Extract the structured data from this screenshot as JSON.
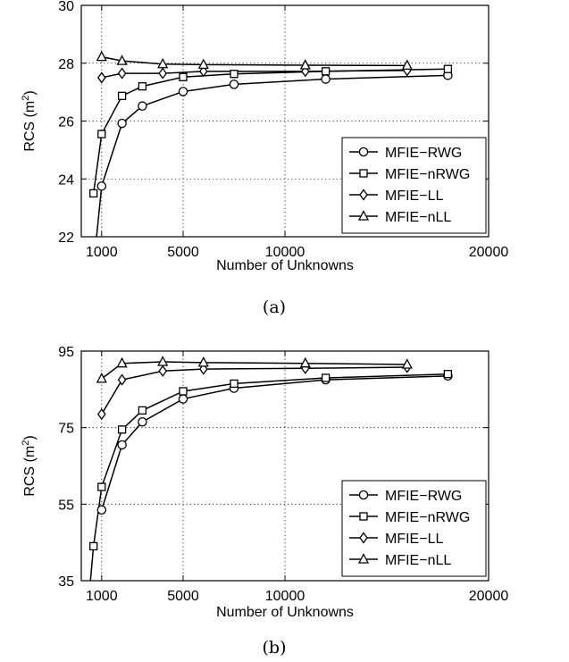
{
  "chart_data": [
    {
      "type": "line",
      "caption": "(a)",
      "xlabel": "Number of Unknowns",
      "ylabel": "RCS (m2)",
      "ylabel_main": "RCS (m",
      "ylabel_sup": "2",
      "ylabel_close": ")",
      "xlim": [
        0,
        20000
      ],
      "ylim": [
        22,
        30
      ],
      "xticks": [
        1000,
        5000,
        10000,
        20000
      ],
      "yticks": [
        22,
        24,
        26,
        28,
        30
      ],
      "grid": true,
      "legend_position": "bottom-right",
      "series": [
        {
          "name": "MFIE−RWG",
          "marker": "circle",
          "x": [
            1000,
            2000,
            3000,
            5000,
            7500,
            12000,
            18000
          ],
          "y": [
            23.75,
            25.92,
            26.52,
            27.02,
            27.27,
            27.45,
            27.58
          ]
        },
        {
          "name": "MFIE−nRWG",
          "marker": "square",
          "x": [
            600,
            1000,
            2000,
            3000,
            5000,
            7500,
            12000,
            18000
          ],
          "y": [
            23.5,
            25.55,
            26.87,
            27.2,
            27.52,
            27.63,
            27.72,
            27.8
          ]
        },
        {
          "name": "MFIE−LL",
          "marker": "diamond",
          "x": [
            1000,
            2000,
            4000,
            6000,
            11000,
            16000
          ],
          "y": [
            27.5,
            27.65,
            27.65,
            27.72,
            27.72,
            27.75
          ]
        },
        {
          "name": "MFIE−nLL",
          "marker": "triangle",
          "x": [
            1000,
            2000,
            4000,
            6000,
            11000,
            16000
          ],
          "y": [
            28.22,
            28.08,
            27.97,
            27.95,
            27.93,
            27.92
          ]
        }
      ],
      "extra_segments": [
        {
          "series": 0,
          "x": [
            750,
            1000
          ],
          "y": [
            22,
            23.75
          ]
        }
      ]
    },
    {
      "type": "line",
      "caption": "(b)",
      "xlabel": "Number of Unknowns",
      "ylabel": "RCS (m2)",
      "ylabel_main": "RCS (m",
      "ylabel_sup": "2",
      "ylabel_close": ")",
      "xlim": [
        0,
        20000
      ],
      "ylim": [
        35,
        95
      ],
      "xticks": [
        1000,
        5000,
        10000,
        20000
      ],
      "yticks": [
        35,
        55,
        75,
        95
      ],
      "grid": true,
      "legend_position": "bottom-right",
      "series": [
        {
          "name": "MFIE−RWG",
          "marker": "circle",
          "x": [
            1000,
            2000,
            3000,
            5000,
            7500,
            12000,
            18000
          ],
          "y": [
            53.5,
            70.5,
            76.5,
            82.5,
            85.3,
            87.5,
            88.5
          ]
        },
        {
          "name": "MFIE−nRWG",
          "marker": "square",
          "x": [
            600,
            1000,
            2000,
            3000,
            5000,
            7500,
            12000,
            18000
          ],
          "y": [
            44.0,
            59.5,
            74.5,
            79.5,
            84.5,
            86.5,
            88.0,
            89.0
          ]
        },
        {
          "name": "MFIE−LL",
          "marker": "diamond",
          "x": [
            1000,
            2000,
            4000,
            6000,
            11000,
            16000
          ],
          "y": [
            78.5,
            87.5,
            89.8,
            90.3,
            90.5,
            90.8
          ]
        },
        {
          "name": "MFIE−nLL",
          "marker": "triangle",
          "x": [
            1000,
            2000,
            4000,
            6000,
            11000,
            16000
          ],
          "y": [
            87.8,
            91.8,
            92.2,
            92.0,
            91.8,
            91.5
          ]
        }
      ],
      "extra_segments": [
        {
          "series": 1,
          "x": [
            450,
            600
          ],
          "y": [
            35,
            44.0
          ]
        }
      ]
    }
  ]
}
